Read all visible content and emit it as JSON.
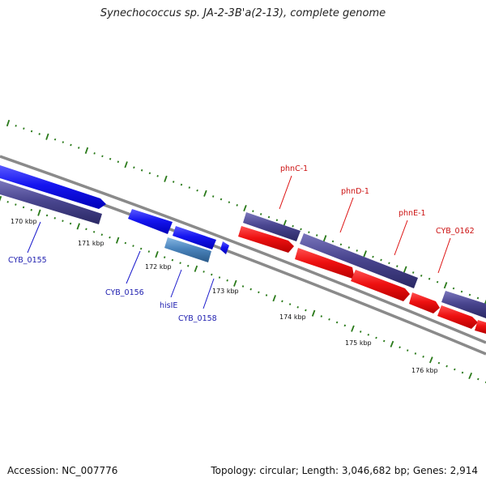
{
  "title": "Synechococcus sp. JA-2-3B'a(2-13), complete genome",
  "footer": {
    "accession": "Accession: NC_007776",
    "stats": "Topology: circular; Length: 3,046,682 bp; Genes: 2,914"
  },
  "colors": {
    "backbone": "#8a8a8a",
    "tick_dots": "#2a7a1a",
    "blue_gene": "#1515f0",
    "blue_label": "#2020b0",
    "red_gene": "#ee1111",
    "red_label": "#cc1111",
    "purple_gene": "#4a4690",
    "light_blue_gene": "#4a84bc"
  },
  "scale_labels": [
    "170 kbp",
    "171 kbp",
    "172 kbp",
    "173 kbp",
    "174 kbp",
    "175 kbp",
    "176 kbp"
  ],
  "gene_labels": [
    {
      "text": "CYB_0155",
      "color": "blue"
    },
    {
      "text": "CYB_0156",
      "color": "blue"
    },
    {
      "text": "hisIE",
      "color": "blue"
    },
    {
      "text": "CYB_0158",
      "color": "blue"
    },
    {
      "text": "phnC-1",
      "color": "red"
    },
    {
      "text": "phnD-1",
      "color": "red"
    },
    {
      "text": "phnE-1",
      "color": "red"
    },
    {
      "text": "CYB_0162",
      "color": "red"
    }
  ]
}
